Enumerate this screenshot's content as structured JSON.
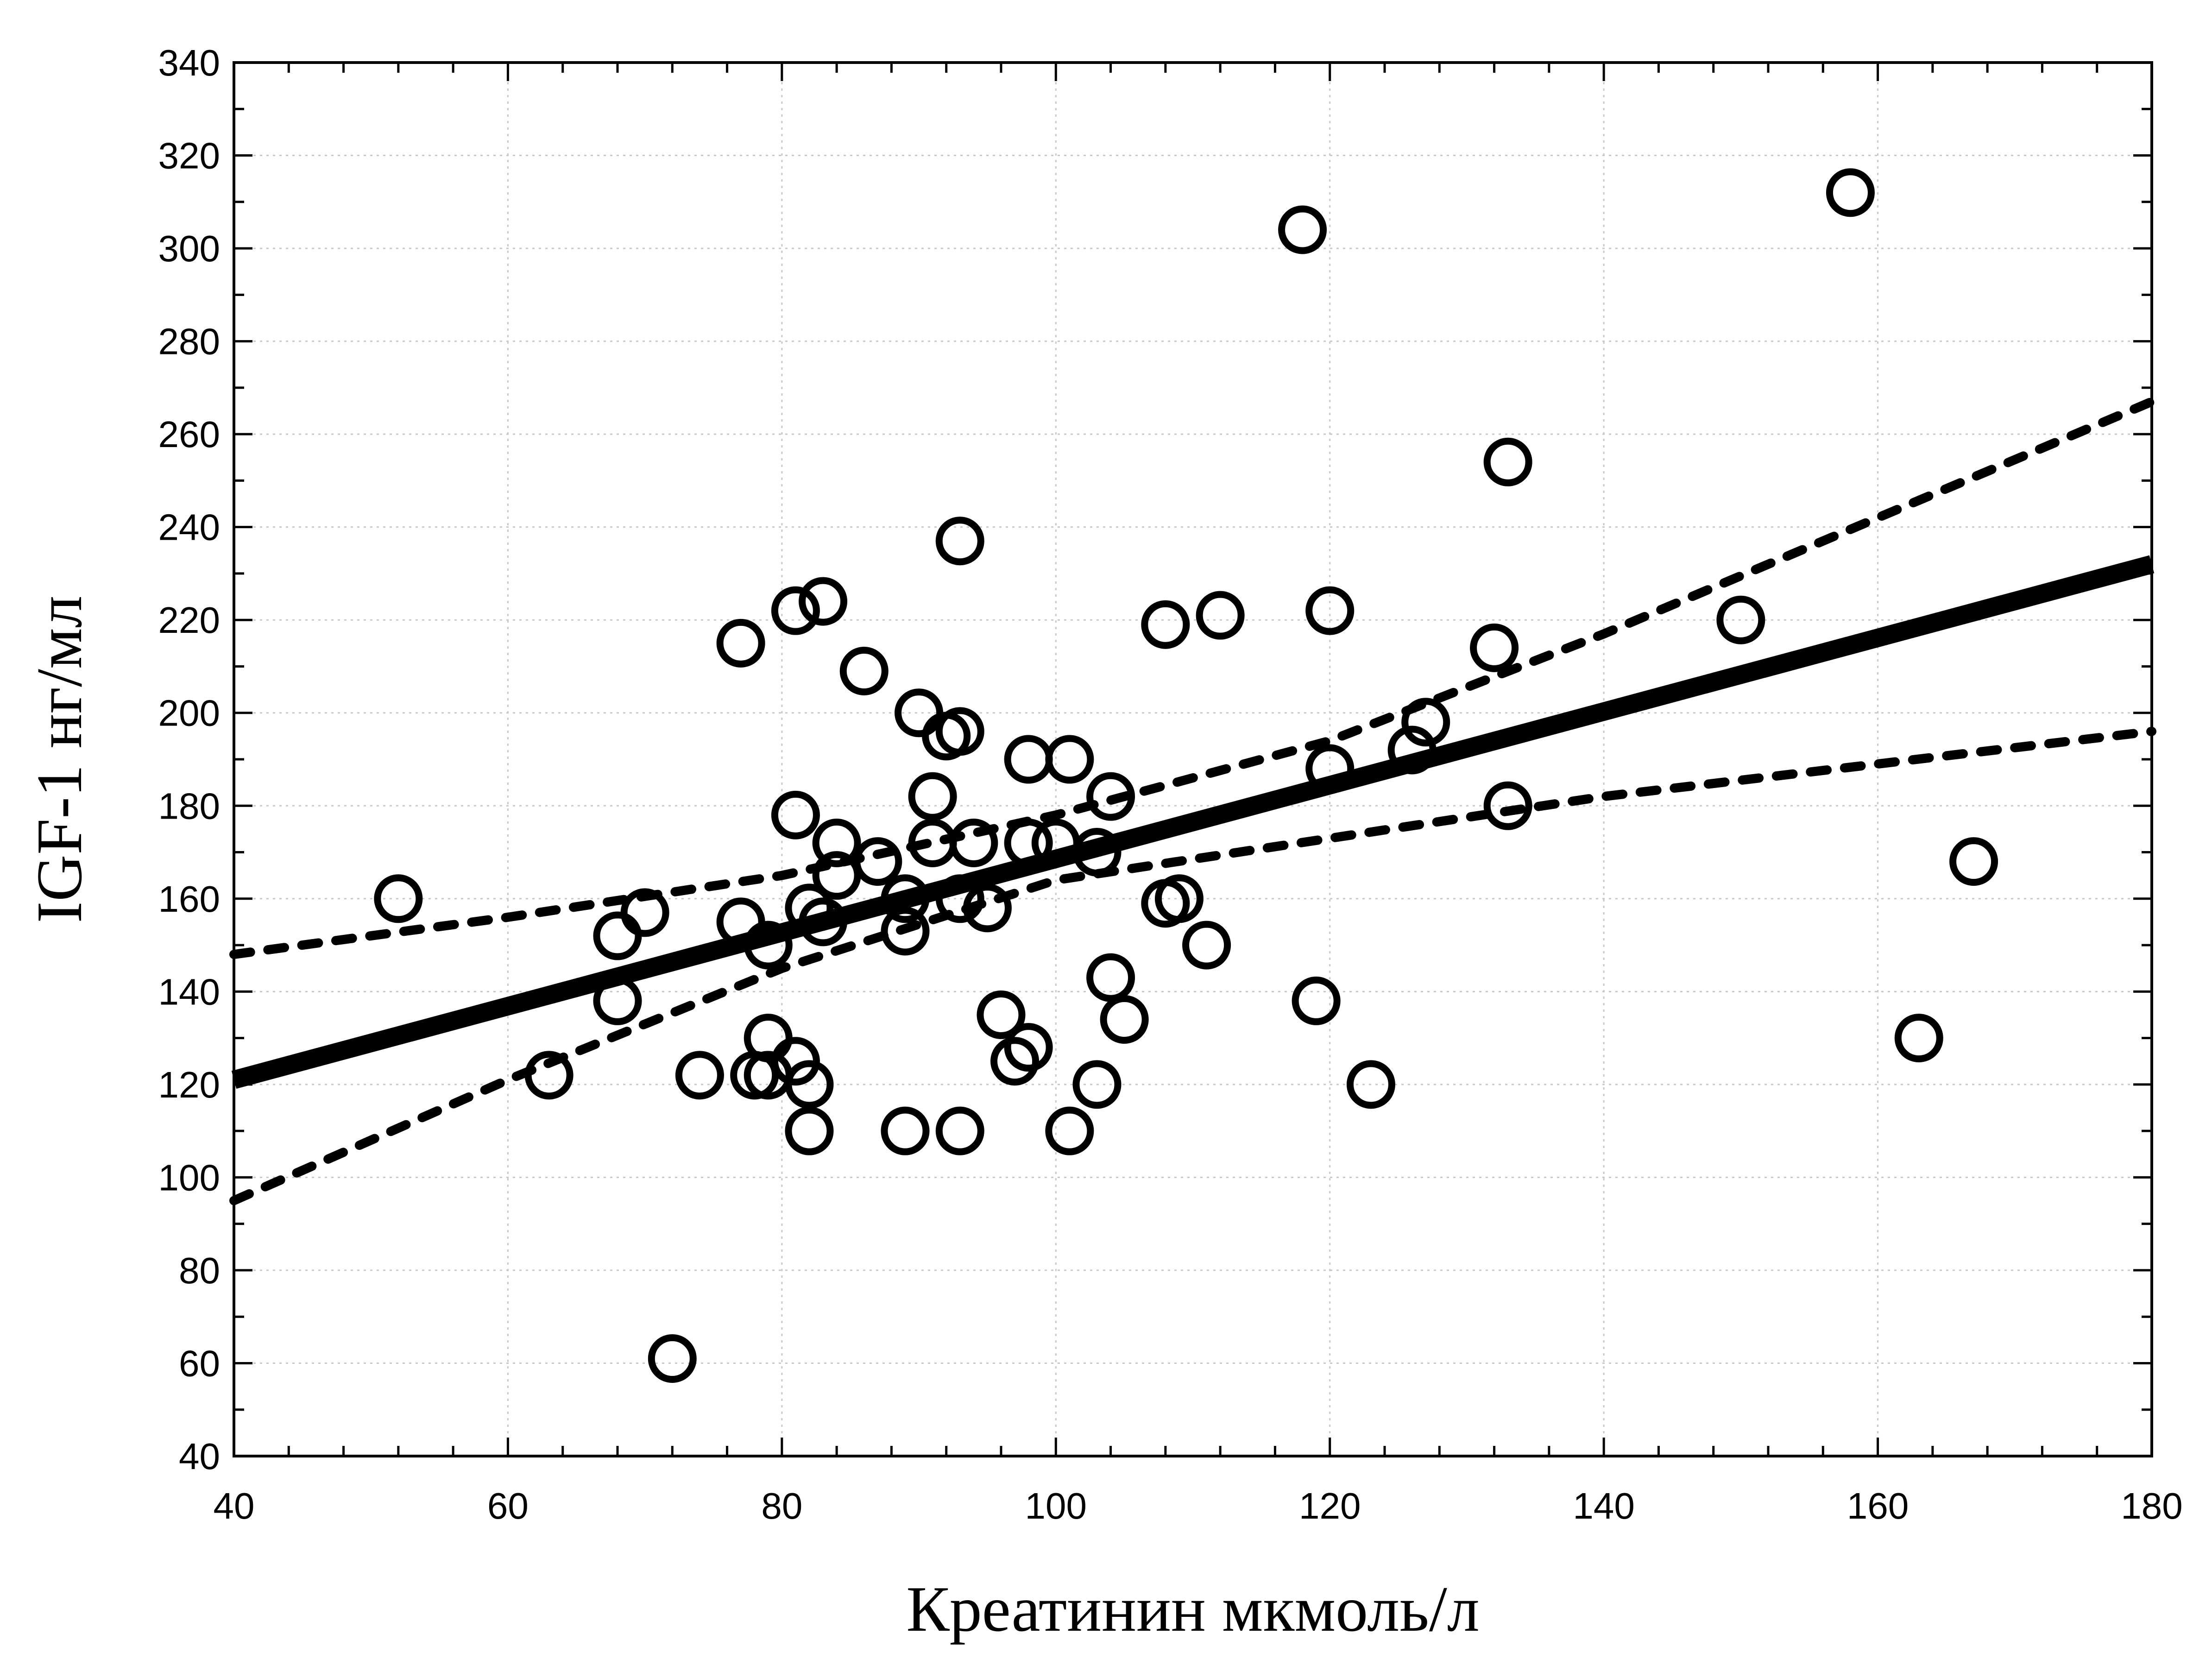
{
  "chart_data": {
    "type": "scatter",
    "title": "",
    "xlabel": "Креатинин мкмоль/л",
    "ylabel": "IGF-1 нг/мл",
    "xlim": [
      40,
      180
    ],
    "ylim": [
      40,
      340
    ],
    "xticks": [
      40,
      60,
      80,
      100,
      120,
      140,
      160,
      180
    ],
    "yticks": [
      40,
      60,
      80,
      100,
      120,
      140,
      160,
      180,
      200,
      220,
      240,
      260,
      280,
      300,
      320,
      340
    ],
    "grid": true,
    "legend": "none",
    "points": [
      [
        52,
        160
      ],
      [
        63,
        122
      ],
      [
        68,
        152
      ],
      [
        68,
        138
      ],
      [
        70,
        157
      ],
      [
        72,
        61
      ],
      [
        74,
        122
      ],
      [
        77,
        215
      ],
      [
        77,
        155
      ],
      [
        78,
        122
      ],
      [
        79,
        150
      ],
      [
        79,
        130
      ],
      [
        79,
        122
      ],
      [
        81,
        222
      ],
      [
        81,
        178
      ],
      [
        81,
        125
      ],
      [
        82,
        158
      ],
      [
        82,
        120
      ],
      [
        82,
        110
      ],
      [
        83,
        224
      ],
      [
        83,
        155
      ],
      [
        84,
        172
      ],
      [
        84,
        165
      ],
      [
        86,
        209
      ],
      [
        87,
        168
      ],
      [
        89,
        160
      ],
      [
        89,
        153
      ],
      [
        89,
        110
      ],
      [
        90,
        200
      ],
      [
        91,
        182
      ],
      [
        91,
        172
      ],
      [
        92,
        195
      ],
      [
        93,
        237
      ],
      [
        93,
        196
      ],
      [
        93,
        160
      ],
      [
        93,
        110
      ],
      [
        94,
        172
      ],
      [
        95,
        158
      ],
      [
        96,
        135
      ],
      [
        97,
        125
      ],
      [
        98,
        190
      ],
      [
        98,
        172
      ],
      [
        98,
        128
      ],
      [
        100,
        172
      ],
      [
        101,
        190
      ],
      [
        101,
        110
      ],
      [
        103,
        170
      ],
      [
        103,
        120
      ],
      [
        104,
        182
      ],
      [
        104,
        143
      ],
      [
        105,
        134
      ],
      [
        108,
        219
      ],
      [
        108,
        159
      ],
      [
        109,
        160
      ],
      [
        111,
        150
      ],
      [
        112,
        221
      ],
      [
        118,
        304
      ],
      [
        119,
        138
      ],
      [
        120,
        222
      ],
      [
        120,
        188
      ],
      [
        123,
        120
      ],
      [
        126,
        192
      ],
      [
        127,
        198
      ],
      [
        132,
        214
      ],
      [
        133,
        254
      ],
      [
        133,
        180
      ],
      [
        150,
        220
      ],
      [
        158,
        312
      ],
      [
        163,
        130
      ],
      [
        167,
        168
      ]
    ],
    "fit_line": {
      "x": [
        40,
        180
      ],
      "y": [
        121,
        232
      ]
    },
    "ci_upper": {
      "x": [
        40,
        60,
        80,
        100,
        120,
        140,
        160,
        180
      ],
      "y": [
        148,
        156,
        165,
        178,
        194,
        217,
        242,
        267
      ]
    },
    "ci_lower": {
      "x": [
        40,
        60,
        80,
        100,
        120,
        140,
        160,
        180
      ],
      "y": [
        95,
        121,
        145,
        164,
        173,
        182,
        189,
        196
      ]
    }
  }
}
